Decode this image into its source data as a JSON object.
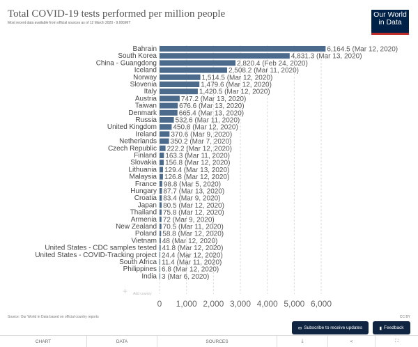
{
  "header": {
    "title": "Total COVID-19 tests performed per million people",
    "subtitle": "Most recent data available from official sources as of 12 March 2020 - 9.00GMT",
    "logo": "Our World in Data"
  },
  "footer": {
    "source": "Source: Our World in Data based on official country reports",
    "license": "CC BY",
    "subscribe_label": "Subscribe to receive updates",
    "feedback_label": "Feedback"
  },
  "tabs": [
    "CHART",
    "DATA",
    "SOURCES"
  ],
  "add_country": "Add country",
  "colors": {
    "bar": "#4c6a8c",
    "logo_bg": "#002147",
    "logo_accent": "#be2b2b"
  },
  "chart_data": {
    "type": "bar",
    "orientation": "horizontal",
    "title": "Total COVID-19 tests performed per million people",
    "xlim": [
      0,
      6000
    ],
    "xticks": [
      0,
      1000,
      2000,
      3000,
      4000,
      5000,
      6000
    ],
    "xtick_labels": [
      "0",
      "1,000",
      "2,000",
      "3,000",
      "4,000",
      "5,000",
      "6,000"
    ],
    "grid": true,
    "categories": [
      "Bahrain",
      "South Korea",
      "China - Guangdong",
      "Iceland",
      "Norway",
      "Slovenia",
      "Italy",
      "Austria",
      "Taiwan",
      "Denmark",
      "Russia",
      "United Kingdom",
      "Ireland",
      "Netherlands",
      "Czech Republic",
      "Finland",
      "Slovakia",
      "Lithuania",
      "Malaysia",
      "France",
      "Hungary",
      "Croatia",
      "Japan",
      "Thailand",
      "Armenia",
      "New Zealand",
      "Poland",
      "Vietnam",
      "United States - CDC samples tested",
      "United States - COVID-Tracking project",
      "South Africa",
      "Philippines",
      "India"
    ],
    "values": [
      6164.5,
      4831.3,
      2820.4,
      2508.2,
      1514.5,
      1479.6,
      1420.5,
      747.2,
      676.6,
      665.4,
      532.6,
      450.8,
      370.6,
      350.2,
      222.2,
      163.3,
      156.8,
      129.4,
      126.8,
      98.8,
      87.7,
      83.4,
      80.5,
      75.8,
      72,
      70.5,
      58.8,
      48,
      41.8,
      24.4,
      11.4,
      6.8,
      3
    ],
    "data_labels": [
      "6,164.5 (Mar 12, 2020)",
      "4,831.3 (Mar 13, 2020)",
      "2,820.4 (Feb 24, 2020)",
      "2,508.2 (Mar 11, 2020)",
      "1,514.5 (Mar 12, 2020)",
      "1,479.6 (Mar 12, 2020)",
      "1,420.5 (Mar 12, 2020)",
      "747.2 (Mar 13, 2020)",
      "676.6 (Mar 13, 2020)",
      "665.4 (Mar 13, 2020)",
      "532.6 (Mar 11, 2020)",
      "450.8 (Mar 12, 2020)",
      "370.6 (Mar 9, 2020)",
      "350.2 (Mar 7, 2020)",
      "222.2 (Mar 12, 2020)",
      "163.3 (Mar 11, 2020)",
      "156.8 (Mar 12, 2020)",
      "129.4 (Mar 13, 2020)",
      "126.8 (Mar 12, 2020)",
      "98.8 (Mar 5, 2020)",
      "87.7 (Mar 13, 2020)",
      "83.4 (Mar 9, 2020)",
      "80.5 (Mar 12, 2020)",
      "75.8 (Mar 12, 2020)",
      "72 (Mar 9, 2020)",
      "70.5 (Mar 11, 2020)",
      "58.8 (Mar 12, 2020)",
      "48 (Mar 12, 2020)",
      "41.8 (Mar 12, 2020)",
      "24.4 (Mar 12, 2020)",
      "11.4 (Mar 11, 2020)",
      "6.8 (Mar 12, 2020)",
      "3 (Mar 6, 2020)"
    ]
  }
}
